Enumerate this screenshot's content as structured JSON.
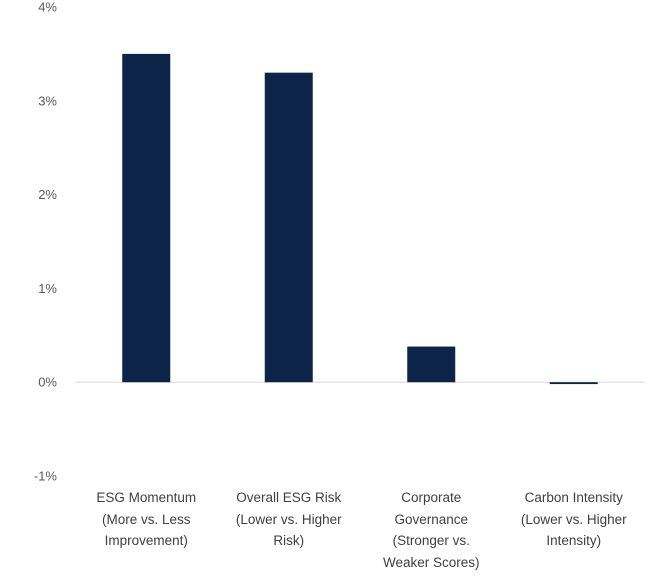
{
  "chart_data": {
    "type": "bar",
    "categories": [
      [
        "ESG Momentum",
        "(More vs. Less",
        "Improvement)"
      ],
      [
        "Overall ESG Risk",
        "(Lower vs. Higher",
        "Risk)"
      ],
      [
        "Corporate",
        "Governance",
        "(Stronger vs.",
        "Weaker Scores)"
      ],
      [
        "Carbon Intensity",
        "(Lower vs. Higher",
        "Intensity)"
      ]
    ],
    "values": [
      3.5,
      3.3,
      0.38,
      -0.02
    ],
    "ylim": [
      -1,
      4
    ],
    "yticks": [
      4,
      3,
      2,
      1,
      0,
      -1
    ],
    "ytick_labels": [
      "4%",
      "3%",
      "2%",
      "1%",
      "0%",
      "-1%"
    ],
    "grid": false,
    "colors": {
      "bar": "#0c2448",
      "axis": "#d9d9d9"
    }
  }
}
